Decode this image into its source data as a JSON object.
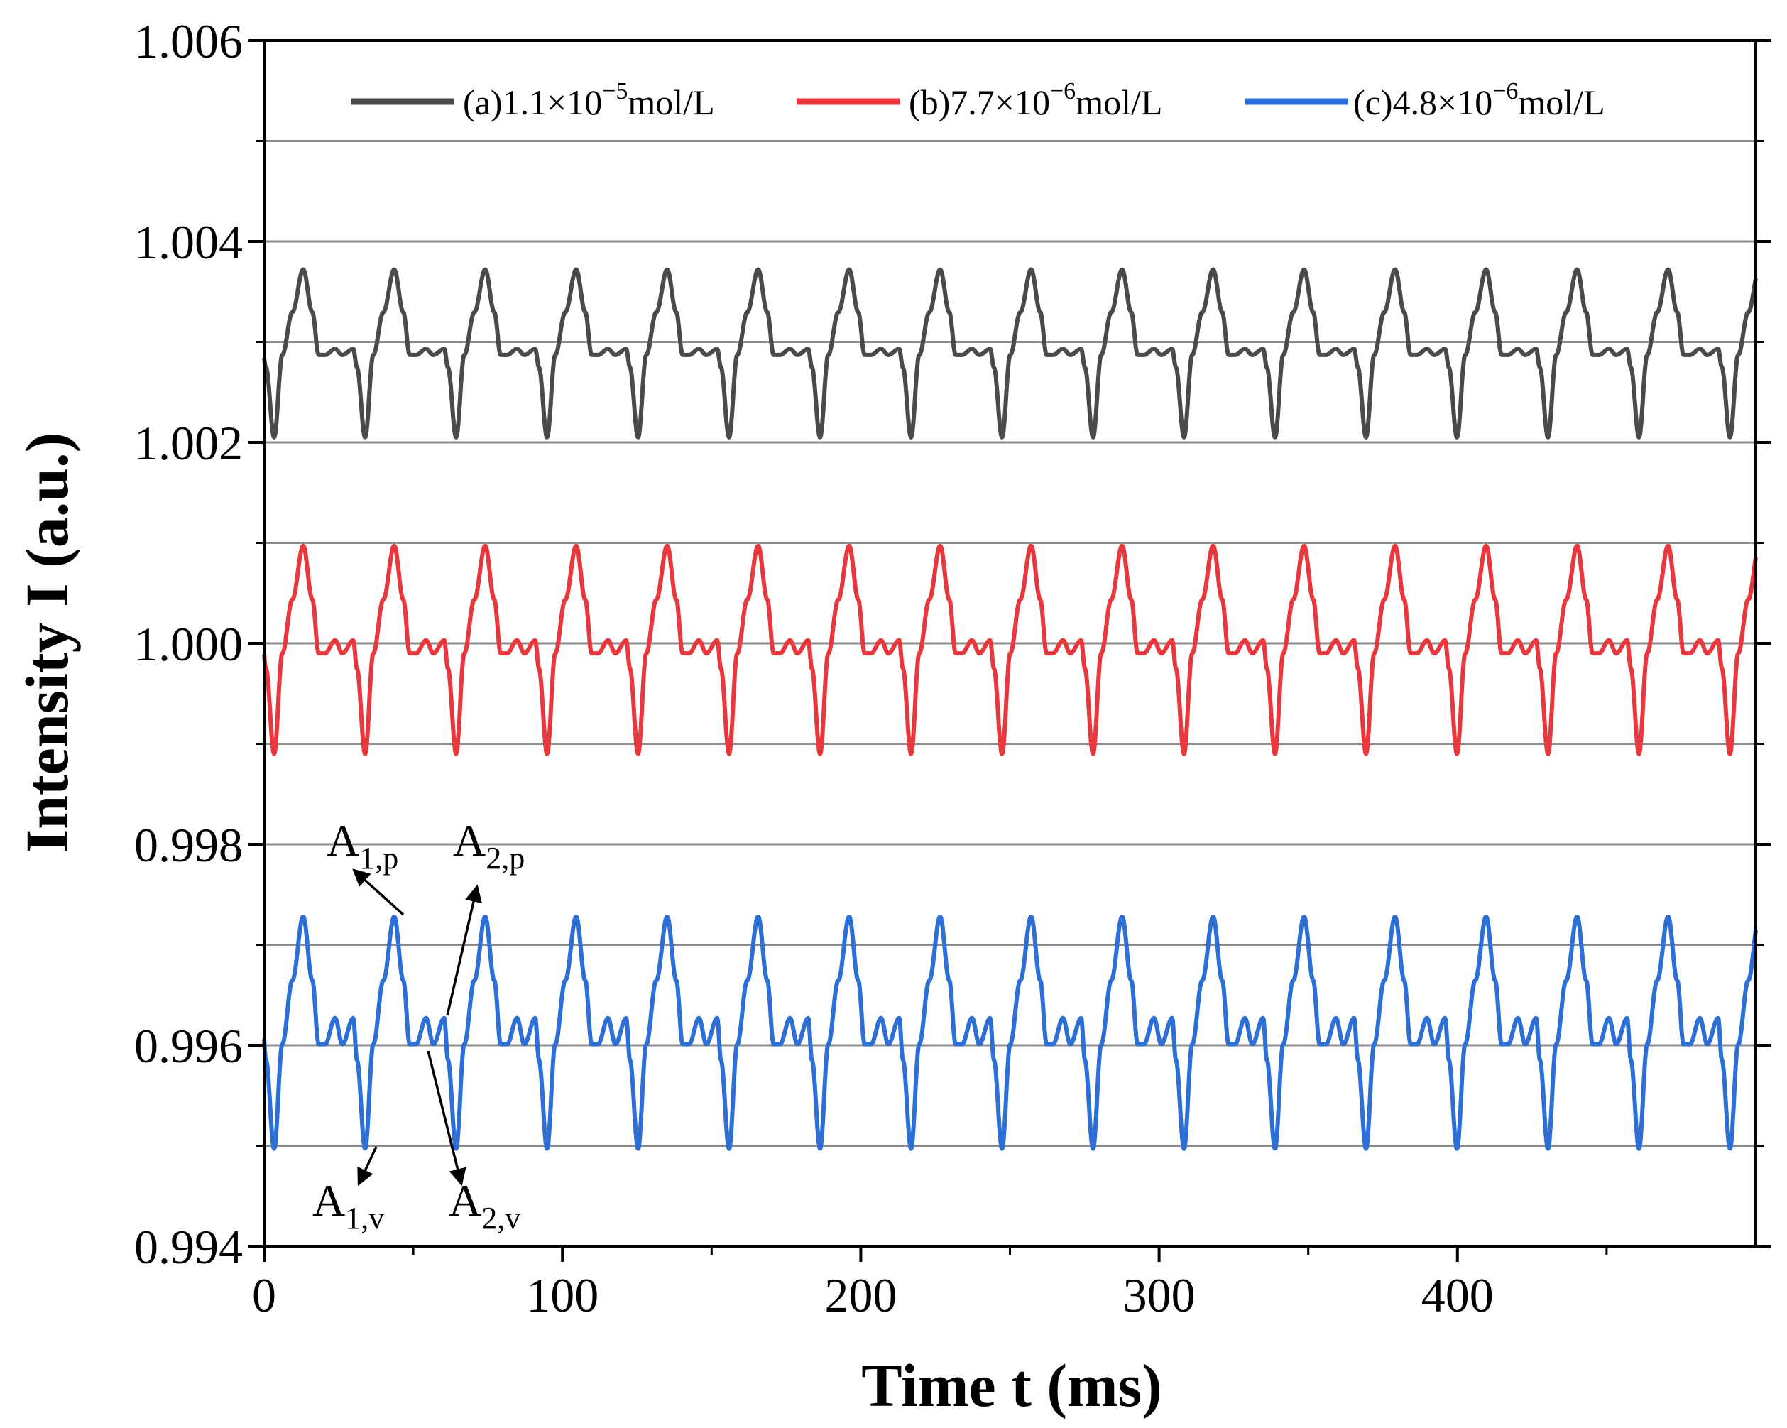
{
  "chart_data": {
    "type": "line",
    "title": "",
    "xlabel": "Time t (ms)",
    "ylabel": "Intensity I (a.u.)",
    "xlim": [
      0,
      500
    ],
    "ylim": [
      0.994,
      1.006
    ],
    "x_ticks": [
      0,
      100,
      200,
      300,
      400
    ],
    "x_tick_labels": [
      "0",
      "100",
      "200",
      "300",
      "400"
    ],
    "y_ticks": [
      0.994,
      0.996,
      0.998,
      1.0,
      1.002,
      1.004,
      1.006
    ],
    "y_tick_labels": [
      "0.994",
      "0.996",
      "0.998",
      "1.000",
      "1.002",
      "1.004",
      "1.006"
    ],
    "grid_y": [
      0.995,
      0.996,
      0.997,
      0.998,
      0.999,
      1.0,
      1.001,
      1.002,
      1.003,
      1.004,
      1.005
    ],
    "legend_position": "top",
    "period_ms": 30.5,
    "series": [
      {
        "name": "(a)1.1×10⁻⁵mol/L",
        "label_main": "(a)1.1×10",
        "label_exp": "−5",
        "label_unit": "mol/L",
        "color": "#4a4a4a",
        "baseline": 1.0029,
        "peak": 1.00372,
        "valley": 1.00205,
        "shoulder_low": 1.00287,
        "shoulder_high": 1.00293
      },
      {
        "name": "(b)7.7×10⁻⁶mol/L",
        "label_main": "(b)7.7×10",
        "label_exp": "−6",
        "label_unit": "mol/L",
        "color": "#e8383d",
        "baseline": 1.0,
        "peak": 1.00097,
        "valley": 0.9989,
        "shoulder_low": 0.9999,
        "shoulder_high": 1.00003
      },
      {
        "name": "(c)4.8×10⁻⁶mol/L",
        "label_main": "(c)4.8×10",
        "label_exp": "−6",
        "label_unit": "mol/L",
        "color": "#2d6fd6",
        "baseline": 0.9962,
        "peak": 0.99728,
        "valley": 0.99497,
        "shoulder_low": 0.99601,
        "shoulder_high": 0.99627
      }
    ],
    "annotations": [
      {
        "main": "A",
        "sub": "1,p"
      },
      {
        "main": "A",
        "sub": "2,p"
      },
      {
        "main": "A",
        "sub": "1,v"
      },
      {
        "main": "A",
        "sub": "2,v"
      }
    ]
  }
}
